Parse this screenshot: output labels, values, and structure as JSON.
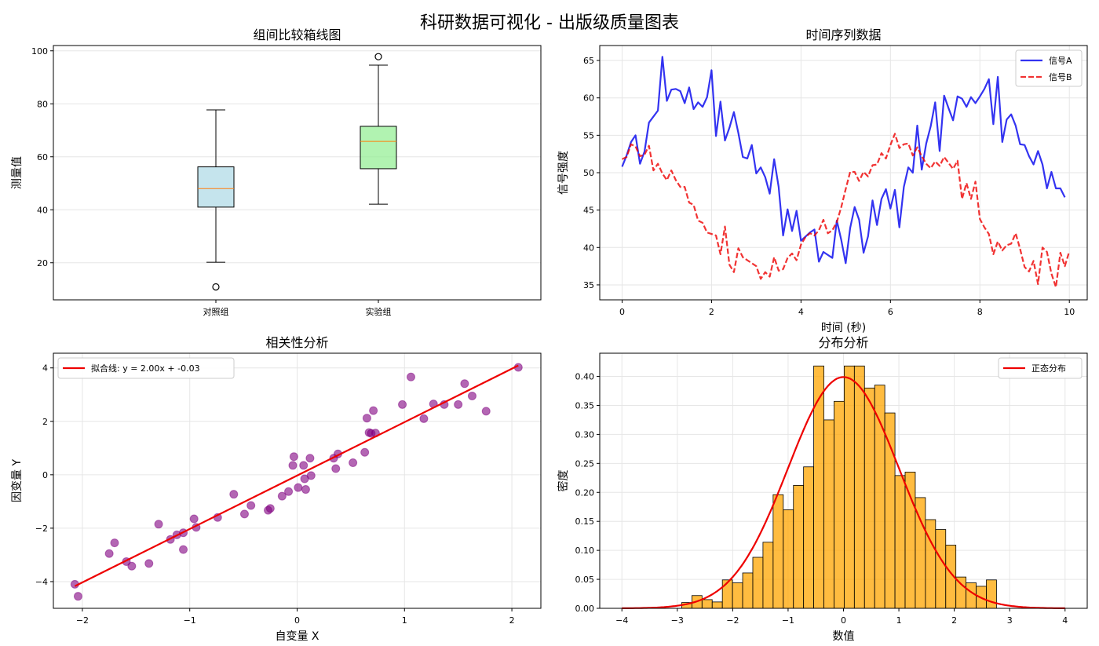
{
  "figure_title": "科研数据可视化 - 出版级质量图表",
  "chart_data": [
    {
      "type": "box",
      "title": "组间比较箱线图",
      "xlabel": "",
      "ylabel": "测量值",
      "ylim": [
        6,
        102
      ],
      "yticks": [
        20,
        40,
        60,
        80,
        100
      ],
      "categories": [
        "对照组",
        "实验组"
      ],
      "boxes": [
        {
          "category": "对照组",
          "whisker_low": 20.2,
          "q1": 41.0,
          "median": 48.0,
          "q3": 56.2,
          "whisker_high": 77.7,
          "outliers": [
            10.9
          ],
          "fill": "#add8e6"
        },
        {
          "category": "实验组",
          "whisker_low": 42.1,
          "q1": 55.5,
          "median": 65.8,
          "q3": 71.5,
          "whisker_high": 94.6,
          "outliers": [
            97.8
          ],
          "fill": "#90ee90"
        }
      ],
      "grid": true
    },
    {
      "type": "line",
      "title": "时间序列数据",
      "xlabel": "时间 (秒)",
      "ylabel": "信号强度",
      "xlim": [
        -0.5,
        10.4
      ],
      "ylim": [
        33,
        67
      ],
      "xticks": [
        0,
        2,
        4,
        6,
        8,
        10
      ],
      "yticks": [
        35,
        40,
        45,
        50,
        55,
        60,
        65
      ],
      "legend": "top-right",
      "grid": true,
      "series": [
        {
          "name": "信号A",
          "color": "#0000ee",
          "style": "solid",
          "points": [
            [
              0,
              50.8
            ],
            [
              0.1,
              52.3
            ],
            [
              0.2,
              54.1
            ],
            [
              0.3,
              55.0
            ],
            [
              0.4,
              51.2
            ],
            [
              0.5,
              52.8
            ],
            [
              0.6,
              56.7
            ],
            [
              0.8,
              58.3
            ],
            [
              0.9,
              65.5
            ],
            [
              1.0,
              59.6
            ],
            [
              1.1,
              61.1
            ],
            [
              1.2,
              61.2
            ],
            [
              1.3,
              60.9
            ],
            [
              1.4,
              59.3
            ],
            [
              1.5,
              61.4
            ],
            [
              1.6,
              58.5
            ],
            [
              1.7,
              59.4
            ],
            [
              1.8,
              58.8
            ],
            [
              1.9,
              60.1
            ],
            [
              2.0,
              63.7
            ],
            [
              2.1,
              54.9
            ],
            [
              2.2,
              59.5
            ],
            [
              2.3,
              54.3
            ],
            [
              2.4,
              56.0
            ],
            [
              2.5,
              58.1
            ],
            [
              2.6,
              55.3
            ],
            [
              2.7,
              52.1
            ],
            [
              2.8,
              51.9
            ],
            [
              2.9,
              53.7
            ],
            [
              3.0,
              49.9
            ],
            [
              3.1,
              50.7
            ],
            [
              3.2,
              49.4
            ],
            [
              3.3,
              47.2
            ],
            [
              3.4,
              51.8
            ],
            [
              3.5,
              48.1
            ],
            [
              3.6,
              41.6
            ],
            [
              3.7,
              45.1
            ],
            [
              3.8,
              42.2
            ],
            [
              3.9,
              44.9
            ],
            [
              4.0,
              40.9
            ],
            [
              4.2,
              42.0
            ],
            [
              4.3,
              42.4
            ],
            [
              4.4,
              38.1
            ],
            [
              4.5,
              39.4
            ],
            [
              4.7,
              38.6
            ],
            [
              4.8,
              43.6
            ],
            [
              4.9,
              41.0
            ],
            [
              5.0,
              37.9
            ],
            [
              5.1,
              42.6
            ],
            [
              5.2,
              45.4
            ],
            [
              5.3,
              43.7
            ],
            [
              5.4,
              39.3
            ],
            [
              5.5,
              41.5
            ],
            [
              5.6,
              46.3
            ],
            [
              5.7,
              43.0
            ],
            [
              5.8,
              46.5
            ],
            [
              5.9,
              47.8
            ],
            [
              6.0,
              45.2
            ],
            [
              6.1,
              47.7
            ],
            [
              6.2,
              42.7
            ],
            [
              6.3,
              48.1
            ],
            [
              6.4,
              50.7
            ],
            [
              6.5,
              50.0
            ],
            [
              6.6,
              56.3
            ],
            [
              6.7,
              50.4
            ],
            [
              6.8,
              53.9
            ],
            [
              6.9,
              56.2
            ],
            [
              7.0,
              59.4
            ],
            [
              7.1,
              52.9
            ],
            [
              7.2,
              60.3
            ],
            [
              7.3,
              58.6
            ],
            [
              7.4,
              57.0
            ],
            [
              7.5,
              60.2
            ],
            [
              7.6,
              59.9
            ],
            [
              7.7,
              58.8
            ],
            [
              7.8,
              60.1
            ],
            [
              7.9,
              59.3
            ],
            [
              8.0,
              60.2
            ],
            [
              8.1,
              61.2
            ],
            [
              8.2,
              62.5
            ],
            [
              8.3,
              56.5
            ],
            [
              8.4,
              62.8
            ],
            [
              8.5,
              54.1
            ],
            [
              8.6,
              57.1
            ],
            [
              8.7,
              57.8
            ],
            [
              8.8,
              56.3
            ],
            [
              8.9,
              53.8
            ],
            [
              9.0,
              53.7
            ],
            [
              9.1,
              52.2
            ],
            [
              9.2,
              51.1
            ],
            [
              9.3,
              52.9
            ],
            [
              9.4,
              51.1
            ],
            [
              9.5,
              47.9
            ],
            [
              9.6,
              50.1
            ],
            [
              9.7,
              47.9
            ],
            [
              9.8,
              47.9
            ],
            [
              9.9,
              46.7
            ]
          ]
        },
        {
          "name": "信号B",
          "color": "#ee0000",
          "style": "dashed",
          "points": [
            [
              0,
              51.8
            ],
            [
              0.1,
              52.1
            ],
            [
              0.2,
              53.8
            ],
            [
              0.3,
              53.5
            ],
            [
              0.4,
              52.2
            ],
            [
              0.5,
              52.4
            ],
            [
              0.6,
              53.6
            ],
            [
              0.7,
              50.3
            ],
            [
              0.8,
              51.2
            ],
            [
              0.9,
              49.9
            ],
            [
              1.0,
              49.0
            ],
            [
              1.1,
              50.3
            ],
            [
              1.2,
              49.0
            ],
            [
              1.3,
              48.1
            ],
            [
              1.4,
              48.1
            ],
            [
              1.5,
              46.0
            ],
            [
              1.6,
              45.7
            ],
            [
              1.7,
              43.6
            ],
            [
              1.8,
              43.3
            ],
            [
              1.9,
              42.0
            ],
            [
              2.0,
              41.8
            ],
            [
              2.1,
              41.6
            ],
            [
              2.2,
              39.1
            ],
            [
              2.3,
              42.8
            ],
            [
              2.4,
              37.7
            ],
            [
              2.5,
              36.7
            ],
            [
              2.6,
              39.9
            ],
            [
              2.7,
              38.7
            ],
            [
              2.8,
              38.3
            ],
            [
              2.9,
              37.9
            ],
            [
              3.0,
              37.5
            ],
            [
              3.1,
              35.8
            ],
            [
              3.2,
              36.7
            ],
            [
              3.3,
              36.1
            ],
            [
              3.4,
              38.7
            ],
            [
              3.5,
              36.9
            ],
            [
              3.6,
              37.1
            ],
            [
              3.7,
              38.6
            ],
            [
              3.8,
              39.2
            ],
            [
              3.9,
              38.3
            ],
            [
              4.0,
              40.4
            ],
            [
              4.1,
              41.4
            ],
            [
              4.2,
              41.9
            ],
            [
              4.3,
              41.6
            ],
            [
              4.4,
              42.3
            ],
            [
              4.5,
              43.7
            ],
            [
              4.6,
              41.9
            ],
            [
              4.7,
              42.3
            ],
            [
              4.8,
              43.4
            ],
            [
              4.9,
              45.4
            ],
            [
              5.0,
              47.8
            ],
            [
              5.1,
              50.1
            ],
            [
              5.2,
              50.1
            ],
            [
              5.3,
              48.9
            ],
            [
              5.4,
              50.1
            ],
            [
              5.5,
              49.5
            ],
            [
              5.6,
              51.0
            ],
            [
              5.7,
              51.1
            ],
            [
              5.8,
              52.6
            ],
            [
              5.9,
              51.9
            ],
            [
              6.0,
              53.7
            ],
            [
              6.1,
              55.2
            ],
            [
              6.2,
              53.3
            ],
            [
              6.3,
              53.8
            ],
            [
              6.4,
              53.9
            ],
            [
              6.5,
              52.3
            ],
            [
              6.6,
              53.4
            ],
            [
              6.7,
              52.2
            ],
            [
              6.8,
              51.2
            ],
            [
              6.9,
              50.6
            ],
            [
              7.0,
              51.5
            ],
            [
              7.1,
              50.9
            ],
            [
              7.2,
              52.1
            ],
            [
              7.3,
              51.3
            ],
            [
              7.4,
              50.5
            ],
            [
              7.5,
              51.6
            ],
            [
              7.6,
              46.5
            ],
            [
              7.7,
              48.6
            ],
            [
              7.8,
              46.5
            ],
            [
              7.9,
              48.8
            ],
            [
              8.0,
              43.8
            ],
            [
              8.1,
              42.7
            ],
            [
              8.2,
              41.8
            ],
            [
              8.3,
              39.1
            ],
            [
              8.4,
              40.8
            ],
            [
              8.5,
              39.6
            ],
            [
              8.6,
              40.3
            ],
            [
              8.7,
              40.5
            ],
            [
              8.8,
              41.9
            ],
            [
              8.9,
              39.8
            ],
            [
              9.0,
              37.4
            ],
            [
              9.1,
              36.8
            ],
            [
              9.2,
              38.2
            ],
            [
              9.3,
              35.1
            ],
            [
              9.4,
              40.0
            ],
            [
              9.5,
              39.4
            ],
            [
              9.6,
              36.5
            ],
            [
              9.7,
              34.7
            ],
            [
              9.8,
              39.3
            ],
            [
              9.9,
              37.5
            ],
            [
              10.0,
              39.5
            ]
          ]
        }
      ]
    },
    {
      "type": "scatter",
      "title": "相关性分析",
      "xlabel": "自变量 X",
      "ylabel": "因变量 Y",
      "xlim": [
        -2.27,
        2.27
      ],
      "ylim": [
        -5.0,
        4.55
      ],
      "xticks": [
        -2,
        -1,
        0,
        1,
        2
      ],
      "yticks": [
        -4,
        -2,
        0,
        2,
        4
      ],
      "legend": "top-left",
      "grid": true,
      "points": [
        [
          -2.07,
          -4.1
        ],
        [
          -2.04,
          -4.55
        ],
        [
          -1.75,
          -2.95
        ],
        [
          -1.7,
          -2.55
        ],
        [
          -1.59,
          -3.25
        ],
        [
          -1.54,
          -3.42
        ],
        [
          -1.38,
          -3.32
        ],
        [
          -1.29,
          -1.85
        ],
        [
          -1.18,
          -2.42
        ],
        [
          -1.12,
          -2.25
        ],
        [
          -1.06,
          -2.8
        ],
        [
          -1.06,
          -2.17
        ],
        [
          -0.96,
          -1.65
        ],
        [
          -0.94,
          -1.97
        ],
        [
          -0.74,
          -1.6
        ],
        [
          -0.59,
          -0.73
        ],
        [
          -0.49,
          -1.47
        ],
        [
          -0.43,
          -1.15
        ],
        [
          -0.27,
          -1.33
        ],
        [
          -0.25,
          -1.26
        ],
        [
          -0.14,
          -0.8
        ],
        [
          -0.08,
          -0.63
        ],
        [
          -0.04,
          0.35
        ],
        [
          -0.03,
          0.68
        ],
        [
          0.01,
          -0.48
        ],
        [
          0.06,
          0.35
        ],
        [
          0.07,
          -0.15
        ],
        [
          0.08,
          -0.55
        ],
        [
          0.12,
          0.62
        ],
        [
          0.13,
          -0.03
        ],
        [
          0.34,
          0.62
        ],
        [
          0.36,
          0.23
        ],
        [
          0.38,
          0.78
        ],
        [
          0.52,
          0.45
        ],
        [
          0.63,
          0.84
        ],
        [
          0.65,
          2.12
        ],
        [
          0.67,
          1.58
        ],
        [
          0.69,
          1.55
        ],
        [
          0.71,
          2.4
        ],
        [
          0.73,
          1.56
        ],
        [
          0.98,
          2.63
        ],
        [
          1.06,
          3.66
        ],
        [
          1.18,
          2.1
        ],
        [
          1.27,
          2.65
        ],
        [
          1.37,
          2.63
        ],
        [
          1.5,
          2.63
        ],
        [
          1.56,
          3.41
        ],
        [
          1.63,
          2.95
        ],
        [
          1.76,
          2.38
        ],
        [
          2.06,
          4.02
        ]
      ],
      "point_color": "#800080",
      "fit_line": {
        "label": "拟合线: y = 2.00x + -0.03",
        "slope": 2.0,
        "intercept": -0.03,
        "x_range": [
          -2.07,
          2.06
        ],
        "color": "#ee0000"
      }
    },
    {
      "type": "histogram",
      "title": "分布分析",
      "xlabel": "数值",
      "ylabel": "密度",
      "xlim": [
        -4.4,
        4.4
      ],
      "ylim": [
        0,
        0.44
      ],
      "xticks": [
        -4,
        -3,
        -2,
        -1,
        0,
        1,
        2,
        3,
        4
      ],
      "yticks": [
        0.0,
        0.05,
        0.1,
        0.15,
        0.2,
        0.25,
        0.3,
        0.35,
        0.4
      ],
      "legend": "top-right",
      "grid": true,
      "bin_start": -2.92,
      "bin_width": 0.1833,
      "densities": [
        0.01,
        0.022,
        0.015,
        0.011,
        0.049,
        0.044,
        0.061,
        0.088,
        0.114,
        0.196,
        0.17,
        0.212,
        0.244,
        0.418,
        0.325,
        0.357,
        0.418,
        0.418,
        0.38,
        0.385,
        0.337,
        0.229,
        0.235,
        0.191,
        0.153,
        0.136,
        0.109,
        0.054,
        0.044,
        0.038,
        0.049
      ],
      "bar_color": "#ffa500",
      "curve": {
        "label": "正态分布",
        "mean": 0,
        "std": 1,
        "x_range": [
          -4,
          4
        ],
        "color": "#ee0000"
      }
    }
  ]
}
